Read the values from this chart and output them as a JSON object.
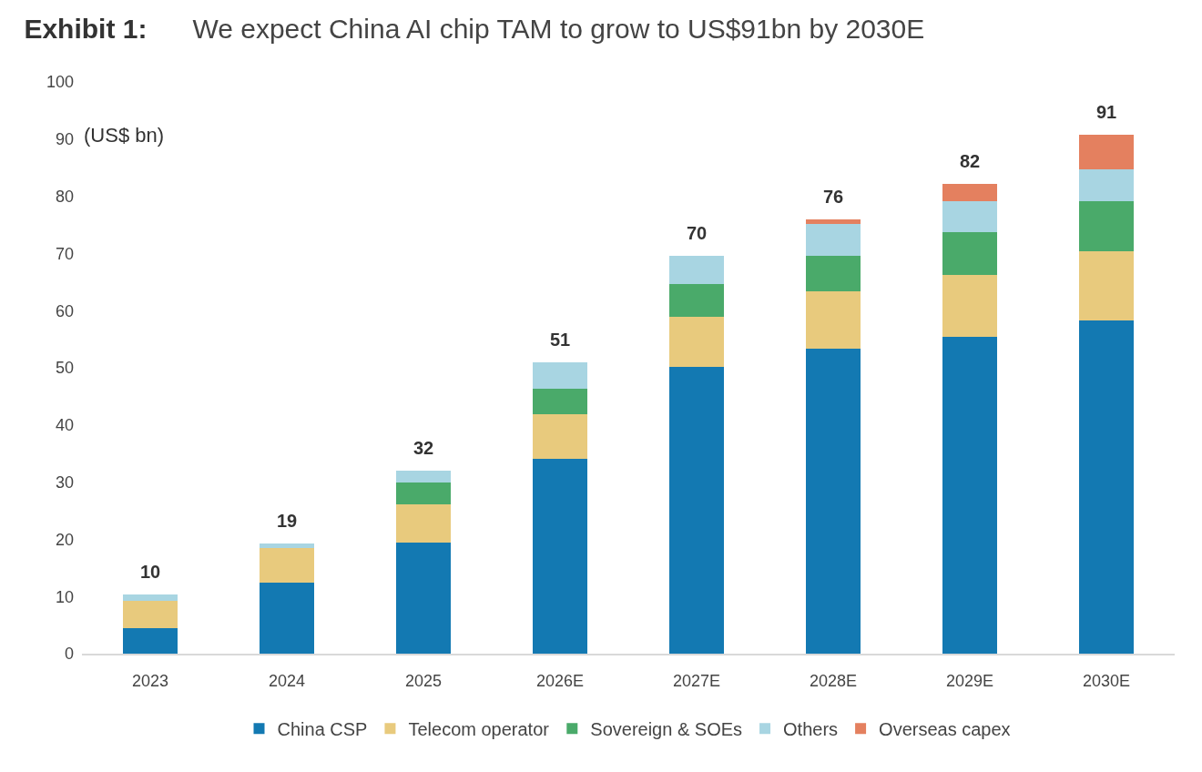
{
  "chart_data": {
    "type": "bar",
    "title": "Exhibit 1:",
    "subtitle": "We expect China AI chip TAM to grow to US$91bn by 2030E",
    "ylabel": "(US$ bn)",
    "categories": [
      "2023",
      "2024",
      "2025",
      "2026E",
      "2027E",
      "2028E",
      "2029E",
      "2030E"
    ],
    "series": [
      {
        "name": "China CSP",
        "color": "#1379b2",
        "values": [
          4.5,
          12.4,
          19.5,
          34.1,
          50.2,
          53.3,
          55.4,
          58.3
        ]
      },
      {
        "name": "Telecom operator",
        "color": "#e8ca7d",
        "values": [
          4.8,
          6.1,
          6.6,
          7.8,
          8.7,
          10.0,
          10.8,
          12.1
        ]
      },
      {
        "name": "Sovereign & SOEs",
        "color": "#4aaa6a",
        "values": [
          0,
          0,
          3.9,
          4.5,
          5.7,
          6.3,
          7.6,
          8.8
        ]
      },
      {
        "name": "Others",
        "color": "#a8d5e2",
        "values": [
          1.0,
          0.8,
          2.0,
          4.5,
          5.0,
          5.6,
          5.4,
          5.5
        ]
      },
      {
        "name": "Overseas capex",
        "color": "#e4805f",
        "values": [
          0,
          0,
          0,
          0,
          0,
          0.8,
          2.9,
          6.1
        ]
      }
    ],
    "stacked": true,
    "totals": [
      "10",
      "19",
      "32",
      "51",
      "70",
      "76",
      "82",
      "91"
    ],
    "ylim": [
      0,
      100
    ],
    "yticks": [
      0,
      10,
      20,
      30,
      40,
      50,
      60,
      70,
      80,
      90,
      100
    ],
    "legend": "bottom"
  }
}
